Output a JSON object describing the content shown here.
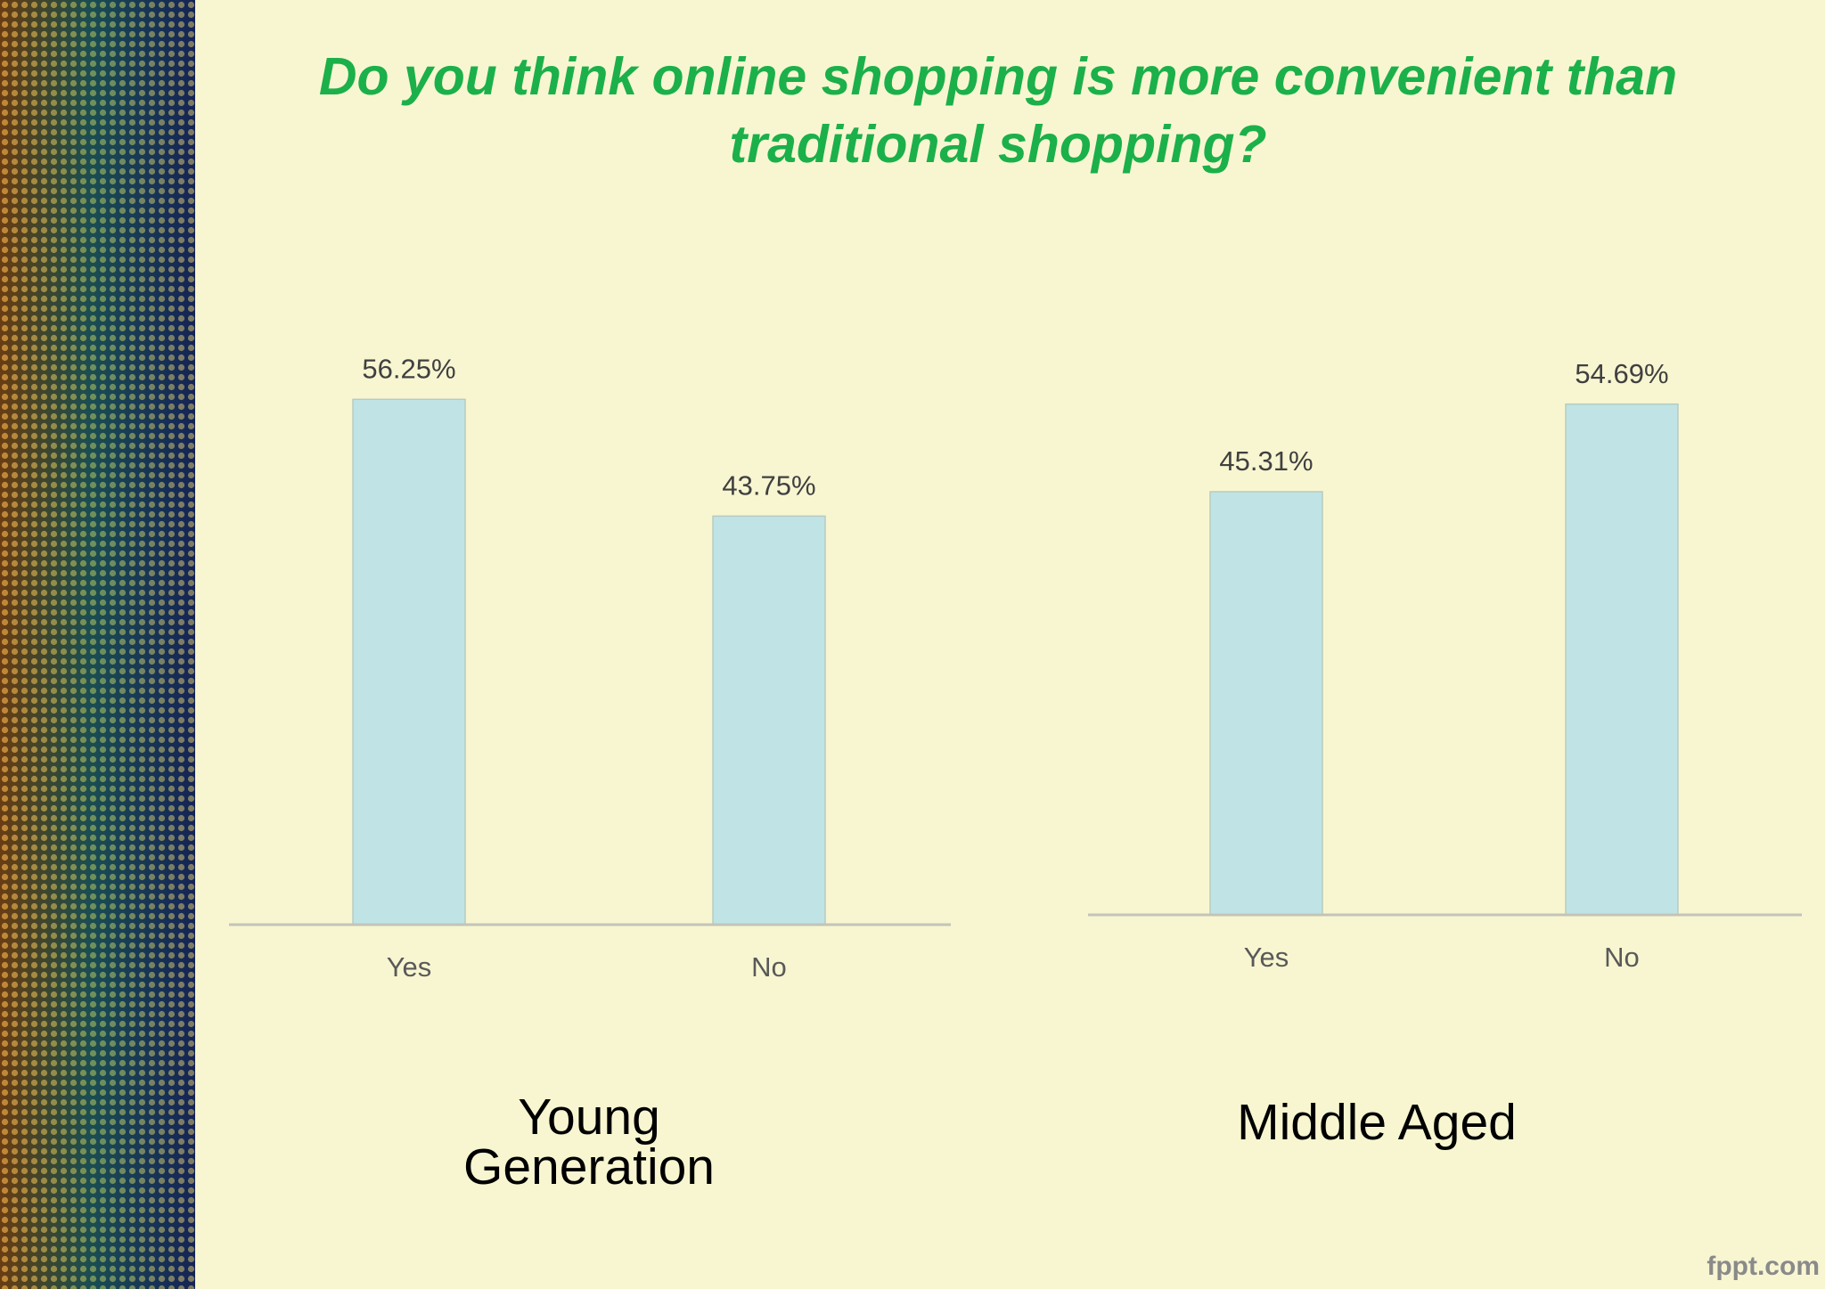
{
  "title": "Do you think online shopping is more convenient than traditional shopping?",
  "watermark": "fppt.com",
  "chart_data": [
    {
      "type": "bar",
      "title": "Young Generation",
      "categories": [
        "Yes",
        "No"
      ],
      "values": [
        56.25,
        43.75
      ],
      "value_labels": [
        "56.25%",
        "43.75%"
      ],
      "color": "#c0e4e5",
      "ylim": [
        0,
        60
      ]
    },
    {
      "type": "bar",
      "title": "Middle Aged",
      "categories": [
        "Yes",
        "No"
      ],
      "values": [
        45.31,
        54.69
      ],
      "value_labels": [
        "45.31%",
        "54.69%"
      ],
      "color": "#c0e4e5",
      "ylim": [
        0,
        60
      ]
    }
  ]
}
